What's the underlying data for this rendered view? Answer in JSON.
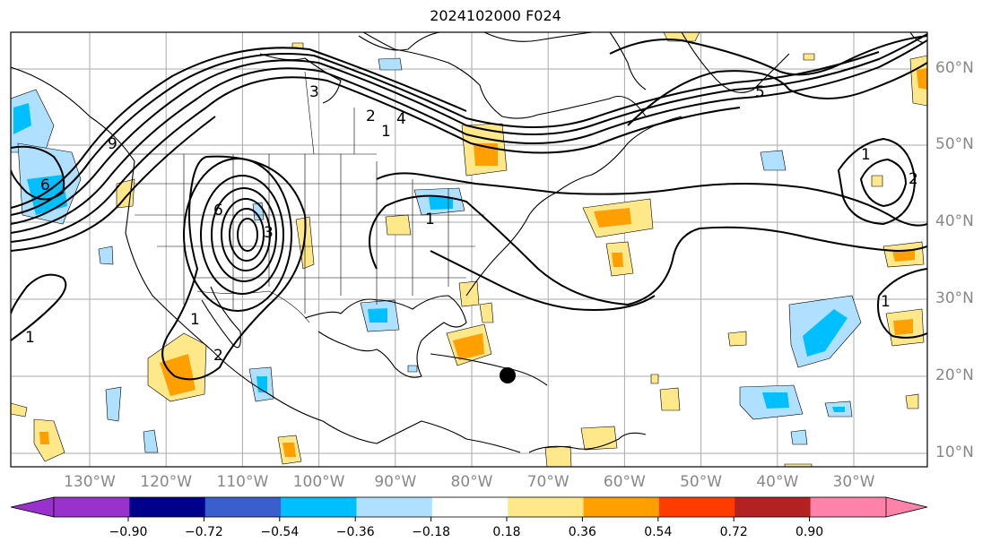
{
  "title": "2024102000 F024",
  "lon_labels": [
    "130°W",
    "120°W",
    "110°W",
    "100°W",
    "90°W",
    "80°W",
    "70°W",
    "60°W",
    "50°W",
    "40°W",
    "30°W"
  ],
  "lat_labels": [
    "60°N",
    "50°N",
    "40°N",
    "30°N",
    "20°N",
    "10°N"
  ],
  "contour_labels": [
    "5",
    "4",
    "3",
    "2",
    "1",
    "1",
    "3",
    "1",
    "2",
    "6",
    "9",
    "1",
    "2",
    "1",
    "1",
    "6"
  ],
  "colorbar": {
    "ticks": [
      "−0.90",
      "−0.72",
      "−0.54",
      "−0.36",
      "−0.18",
      "0.18",
      "0.36",
      "0.54",
      "0.72",
      "0.90"
    ],
    "colors": [
      "#9932cc",
      "#00008b",
      "#3a5fcd",
      "#00bfff",
      "#b0e0ff",
      "#ffffff",
      "#ffe88a",
      "#ffa000",
      "#ff3c00",
      "#b22222",
      "#ff82ab"
    ]
  },
  "storm_marker": "black-dot",
  "colors": {
    "gridline": "#aaaaaa",
    "axis_label": "#888888",
    "contour": "#000000"
  }
}
